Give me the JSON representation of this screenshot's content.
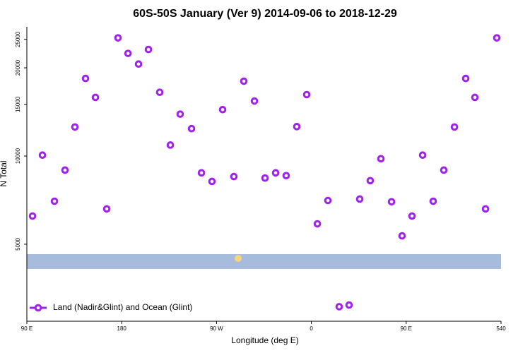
{
  "chart_data": {
    "type": "scatter",
    "title": "60S-50S January (Ver 9)   2014-09-06 to 2018-12-29",
    "x_label": "Longitude (deg E)",
    "y_label": "N Total",
    "x": [
      95.4,
      104.8,
      116.2,
      126.2,
      135.6,
      145.7,
      155.1,
      165.8,
      176.5,
      186.0,
      196.0,
      205.4,
      216.1,
      226.2,
      235.5,
      246.3,
      255.7,
      265.7,
      275.8,
      286.5,
      295.9,
      306.0,
      316.0,
      326.1,
      336.1,
      346.2,
      355.6,
      365.7,
      375.7,
      386.4,
      395.8,
      405.9,
      415.9,
      426.0,
      436.1,
      446.1,
      455.5,
      465.6,
      475.6,
      485.7,
      495.8,
      506.5,
      515.2,
      525.3,
      536.0
    ],
    "series": [
      {
        "name": "Land (Nadir&Glint) and Ocean (Glint)",
        "color": "#a020f0",
        "values": [
          6240,
          10070,
          7010,
          8950,
          12560,
          18400,
          15850,
          6600,
          25300,
          22400,
          20600,
          23100,
          16500,
          10900,
          13900,
          12400,
          8760,
          8190,
          14400,
          8510,
          18000,
          15400,
          8410,
          8760,
          8570,
          12600,
          16200,
          5870,
          7050,
          3060,
          3100,
          7130,
          8240,
          9790,
          6980,
          5340,
          6240,
          10070,
          7010,
          8950,
          12560,
          18400,
          15850,
          6600,
          25300
        ]
      }
    ],
    "xlim": [
      90,
      540
    ],
    "xticks": [
      {
        "value": 90,
        "label": "90 E"
      },
      180,
      {
        "value": 270,
        "label": "90 W"
      },
      {
        "value": 360,
        "label": "0"
      },
      {
        "value": 450,
        "label": "90 E"
      },
      540
    ],
    "ylim": [
      2730,
      27600
    ],
    "log_y": true,
    "yticks": [
      5000,
      10000,
      15000,
      20000,
      25000
    ],
    "legend": "bottom-left"
  }
}
